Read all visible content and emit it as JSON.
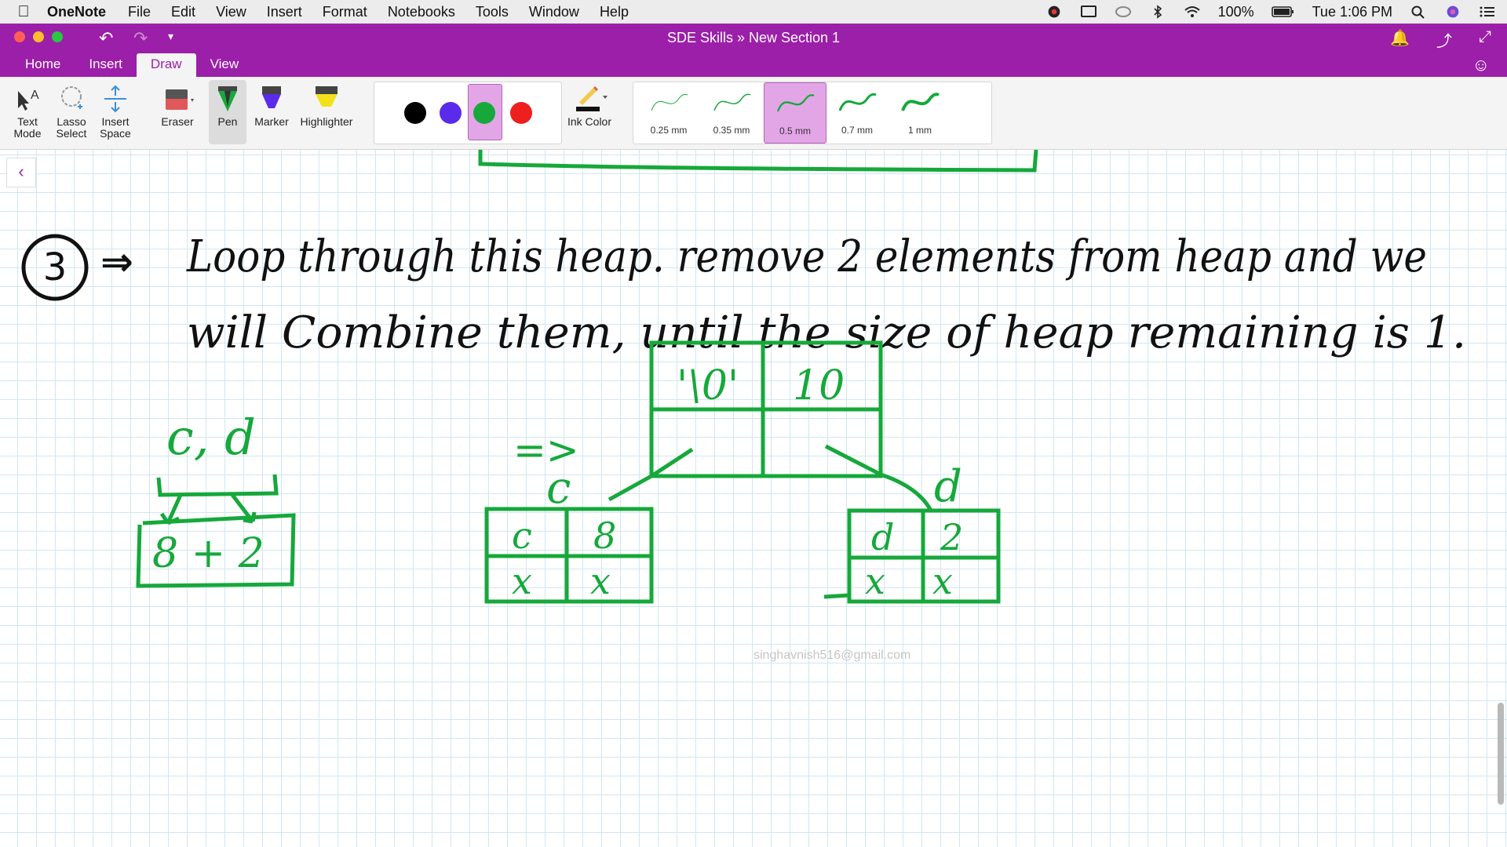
{
  "menubar": {
    "app": "OneNote",
    "items": [
      "File",
      "Edit",
      "View",
      "Insert",
      "Format",
      "Notebooks",
      "Tools",
      "Window",
      "Help"
    ],
    "battery": "100%",
    "clock": "Tue 1:06 PM"
  },
  "window": {
    "title": "SDE Skills  »  New Section 1"
  },
  "tabs": [
    "Home",
    "Insert",
    "Draw",
    "View"
  ],
  "active_tab": "Draw",
  "ribbon": {
    "text_mode": "Text Mode",
    "lasso_select": "Lasso Select",
    "insert_space": "Insert Space",
    "eraser": "Eraser",
    "pen": "Pen",
    "marker": "Marker",
    "highlighter": "Highlighter",
    "ink_color": "Ink Color",
    "colors": [
      "#000000",
      "#5a2bea",
      "#16a83b",
      "#ee1f1f"
    ],
    "selected_color": "#16a83b",
    "thickness": [
      "0.25 mm",
      "0.35 mm",
      "0.5 mm",
      "0.7 mm",
      "1 mm"
    ],
    "selected_thickness": "0.5 mm"
  },
  "note": {
    "step_number": "3",
    "line1": "Loop through this heap. remove 2 elements from heap and we",
    "line2": "will Combine them, until the size of heap remaining is 1.",
    "left_pair": "c, d",
    "left_sum": "8 + 2",
    "arrow": "=>",
    "root_char": "'\\0'",
    "root_freq": "10",
    "left_child_label": "c",
    "right_child_label": "d",
    "left_node": [
      "c",
      "8",
      "x",
      "x"
    ],
    "right_node": [
      "d",
      "2",
      "x",
      "x"
    ],
    "watermark": "singhavnish516@gmail.com"
  }
}
